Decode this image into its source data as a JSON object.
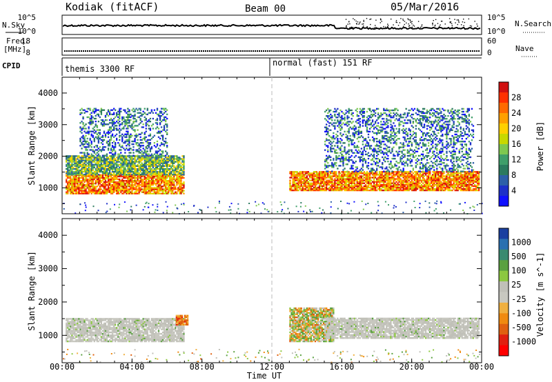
{
  "header": {
    "radar": "Kodiak (fitACF)",
    "beam": "Beam 00",
    "date": "05/Mar/2016"
  },
  "strips": {
    "nsky_label": "N.Sky",
    "nsky_ticks": [
      "10^5",
      "10^0"
    ],
    "nsearch_label": "N.Search",
    "nsearch_ticks": [
      "10^5",
      "10^0"
    ],
    "freq_label": "Freq.",
    "freq_unit": "[MHz]",
    "freq_ticks": [
      "18",
      "8"
    ],
    "nave_label": "Nave",
    "nave_ticks": [
      "60",
      "0"
    ],
    "cpid_label": "CPID",
    "cpid_modes": [
      "themis 3300 RF",
      "normal (fast) 151 RF"
    ],
    "cpid_switch_hour": 12
  },
  "panels": {
    "ylabel": "Slant Range [km]",
    "yticks": [
      1000,
      2000,
      3000,
      4000
    ],
    "xlabel": "Time UT",
    "xticks": [
      "00:00",
      "04:00",
      "08:00",
      "12:00",
      "16:00",
      "20:00",
      "00:00"
    ]
  },
  "power_scale": {
    "label": "Power [dB]",
    "ticks": [
      "28",
      "24",
      "20",
      "16",
      "12",
      "8",
      "4"
    ],
    "colors": [
      "#d01010",
      "#ff3000",
      "#ff6a00",
      "#ffa000",
      "#ffd000",
      "#c8d800",
      "#7ec850",
      "#3f9e6a",
      "#2b7a5e",
      "#2d5fa8",
      "#1e30c8",
      "#1010ff"
    ]
  },
  "velocity_scale": {
    "label": "Velocity [m s^-1]",
    "ticks": [
      "1000",
      "500",
      "100",
      "25",
      "-25",
      "-100",
      "-500",
      "-1000"
    ],
    "colors": [
      "#1a3fa0",
      "#2a70b0",
      "#3a8a70",
      "#5aa040",
      "#8cc840",
      "#c0c0b8",
      "#c8c8c0",
      "#f0b040",
      "#f08a10",
      "#e06010",
      "#e02010",
      "#ff0000"
    ]
  },
  "chart_data": [
    {
      "type": "heatmap",
      "title": "Power",
      "xlabel": "Time UT",
      "ylabel": "Slant Range [km]",
      "xlim": [
        0,
        24
      ],
      "ylim": [
        180,
        4500
      ],
      "colorbar_label": "Power [dB]",
      "colorbar_range": [
        0,
        30
      ],
      "regions": [
        {
          "t": [
            0.2,
            7.0
          ],
          "r": [
            800,
            1400
          ],
          "level": "high"
        },
        {
          "t": [
            0.2,
            7.0
          ],
          "r": [
            1400,
            2000
          ],
          "level": "medium"
        },
        {
          "t": [
            1.0,
            6.0
          ],
          "r": [
            2000,
            3500
          ],
          "level": "low"
        },
        {
          "t": [
            13.0,
            23.8
          ],
          "r": [
            900,
            1500
          ],
          "level": "high"
        },
        {
          "t": [
            15.0,
            23.5
          ],
          "r": [
            1500,
            3500
          ],
          "level": "low"
        }
      ]
    },
    {
      "type": "heatmap",
      "title": "Velocity",
      "xlabel": "Time UT",
      "ylabel": "Slant Range [km]",
      "xlim": [
        0,
        24
      ],
      "ylim": [
        180,
        4500
      ],
      "colorbar_label": "Velocity [m s^-1]",
      "colorbar_range": [
        -1000,
        1000
      ],
      "regions": [
        {
          "t": [
            0.2,
            7.0
          ],
          "r": [
            800,
            1500
          ],
          "level": "ground scatter"
        },
        {
          "t": [
            6.5,
            7.2
          ],
          "r": [
            1300,
            1600
          ],
          "level": "negative"
        },
        {
          "t": [
            13.0,
            15.5
          ],
          "r": [
            800,
            1800
          ],
          "level": "mixed"
        },
        {
          "t": [
            15.0,
            23.8
          ],
          "r": [
            900,
            1500
          ],
          "level": "ground scatter"
        }
      ]
    }
  ]
}
